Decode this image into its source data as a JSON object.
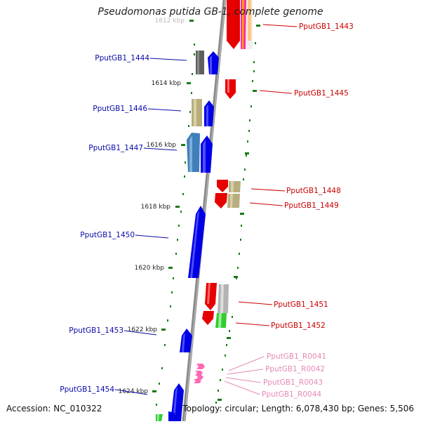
{
  "title": "Pseudomonas putida GB-1, complete genome",
  "footer": {
    "accession": "Accession: NC_010322",
    "topology": "Topology: circular; Length: 6,078,430 bp; Genes: 5,506"
  },
  "colors": {
    "forward_label": "#0a0aa8",
    "reverse_label": "#cc0000",
    "rna_label": "#e58ab5",
    "backbone": "#8a8a8a",
    "tick": "#1a7a1a"
  },
  "kbp_marks": [
    {
      "label": "1612 kbp"
    },
    {
      "label": "1614 kbp"
    },
    {
      "label": "1616 kbp"
    },
    {
      "label": "1618 kbp"
    },
    {
      "label": "1620 kbp"
    },
    {
      "label": "1622 kbp"
    },
    {
      "label": "1624 kbp"
    }
  ],
  "genes_forward": [
    {
      "name": "PputGB1_1444",
      "color": "#5f5f5f"
    },
    {
      "name": "PputGB1_1446",
      "color": "#b8ad7e"
    },
    {
      "name": "PputGB1_1447",
      "color": "#3f7fba"
    },
    {
      "name": "PputGB1_1450",
      "color": "#0000e6"
    },
    {
      "name": "PputGB1_1453",
      "color": "#0000e6"
    },
    {
      "name": "PputGB1_1454",
      "color": "#0000e6"
    }
  ],
  "genes_reverse": [
    {
      "name": "PputGB1_1443",
      "color": "#e60000"
    },
    {
      "name": "PputGB1_1445",
      "color": "#e60000"
    },
    {
      "name": "PputGB1_1448",
      "color": "#e60000"
    },
    {
      "name": "PputGB1_1449",
      "color": "#e60000"
    },
    {
      "name": "PputGB1_1451",
      "color": "#e60000"
    },
    {
      "name": "PputGB1_1452",
      "color": "#e60000"
    }
  ],
  "rna_genes": [
    {
      "name": "PputGB1_R0041"
    },
    {
      "name": "PputGB1_R0042"
    },
    {
      "name": "PputGB1_R0043"
    },
    {
      "name": "PputGB1_R0044"
    }
  ]
}
